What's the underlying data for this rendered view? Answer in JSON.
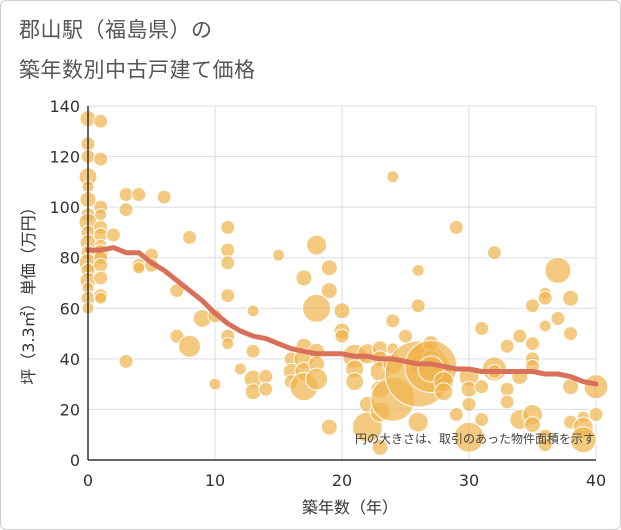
{
  "chart_data": {
    "type": "scatter",
    "title": "郡山駅（福島県）の築年数別中古戸建て価格",
    "title_lines": [
      "郡山駅（福島県）の",
      "築年数別中古戸建て価格"
    ],
    "xlabel": "築年数（年）",
    "ylabel": "坪（3.3㎡）単価（万円）",
    "xlim": [
      0,
      40
    ],
    "ylim": [
      0,
      140
    ],
    "x_ticks": [
      0,
      10,
      20,
      30,
      40
    ],
    "y_ticks": [
      0,
      20,
      40,
      60,
      80,
      100,
      120,
      140
    ],
    "grid": true,
    "note": "円の大きさは、取引のあった物件面積を示す",
    "colors": {
      "bubble": "#f0b44c",
      "trend": "#d9705a",
      "grid": "#d9dee5",
      "axis": "#333333"
    },
    "points": [
      [
        0,
        135,
        8
      ],
      [
        0,
        125,
        7
      ],
      [
        0,
        120,
        7
      ],
      [
        0,
        112,
        9
      ],
      [
        0,
        108,
        6
      ],
      [
        0,
        103,
        8
      ],
      [
        0,
        97,
        7
      ],
      [
        0,
        94,
        9
      ],
      [
        0,
        90,
        7
      ],
      [
        0,
        86,
        8
      ],
      [
        0,
        82,
        7
      ],
      [
        0,
        78,
        9
      ],
      [
        0,
        75,
        7
      ],
      [
        0,
        71,
        8
      ],
      [
        0,
        68,
        6
      ],
      [
        0,
        64,
        7
      ],
      [
        0,
        60,
        6
      ],
      [
        1,
        134,
        7
      ],
      [
        1,
        119,
        7
      ],
      [
        1,
        100,
        7
      ],
      [
        1,
        97,
        6
      ],
      [
        1,
        92,
        7
      ],
      [
        1,
        89,
        7
      ],
      [
        1,
        85,
        6
      ],
      [
        1,
        82,
        8
      ],
      [
        1,
        80,
        7
      ],
      [
        1,
        77,
        7
      ],
      [
        1,
        72,
        7
      ],
      [
        1,
        65,
        7
      ],
      [
        1,
        64,
        6
      ],
      [
        2,
        89,
        7
      ],
      [
        3,
        105,
        7
      ],
      [
        3,
        99,
        7
      ],
      [
        3,
        39,
        7
      ],
      [
        4,
        105,
        7
      ],
      [
        4,
        77,
        7
      ],
      [
        4,
        76,
        6
      ],
      [
        5,
        81,
        7
      ],
      [
        5,
        77,
        7
      ],
      [
        6,
        104,
        7
      ],
      [
        7,
        67,
        7
      ],
      [
        7,
        49,
        7
      ],
      [
        8,
        88,
        7
      ],
      [
        8,
        45,
        11
      ],
      [
        9,
        56,
        9
      ],
      [
        10,
        57,
        7
      ],
      [
        10,
        30,
        6
      ],
      [
        11,
        92,
        7
      ],
      [
        11,
        83,
        7
      ],
      [
        11,
        78,
        7
      ],
      [
        11,
        65,
        7
      ],
      [
        11,
        49,
        7
      ],
      [
        11,
        46,
        6
      ],
      [
        12,
        36,
        6
      ],
      [
        13,
        59,
        6
      ],
      [
        13,
        43,
        7
      ],
      [
        13,
        32,
        9
      ],
      [
        13,
        27,
        8
      ],
      [
        14,
        33,
        7
      ],
      [
        14,
        28,
        7
      ],
      [
        15,
        81,
        6
      ],
      [
        16,
        40,
        7
      ],
      [
        16,
        35,
        8
      ],
      [
        16,
        31,
        7
      ],
      [
        17,
        72,
        8
      ],
      [
        17,
        45,
        8
      ],
      [
        17,
        40,
        10
      ],
      [
        17,
        35,
        9
      ],
      [
        17,
        29,
        14
      ],
      [
        18,
        85,
        10
      ],
      [
        18,
        60,
        14
      ],
      [
        18,
        43,
        8
      ],
      [
        18,
        38,
        8
      ],
      [
        18,
        32,
        11
      ],
      [
        19,
        76,
        8
      ],
      [
        19,
        67,
        8
      ],
      [
        19,
        13,
        8
      ],
      [
        20,
        59,
        8
      ],
      [
        20,
        51,
        8
      ],
      [
        20,
        49,
        7
      ],
      [
        21,
        41,
        12
      ],
      [
        21,
        36,
        9
      ],
      [
        21,
        31,
        9
      ],
      [
        22,
        42,
        10
      ],
      [
        22,
        22,
        8
      ],
      [
        22,
        13,
        15
      ],
      [
        23,
        44,
        8
      ],
      [
        23,
        40,
        8
      ],
      [
        23,
        35,
        10
      ],
      [
        23,
        28,
        9
      ],
      [
        23,
        19,
        10
      ],
      [
        23,
        5,
        8
      ],
      [
        24,
        112,
        6
      ],
      [
        24,
        55,
        7
      ],
      [
        24,
        44,
        6
      ],
      [
        24,
        38,
        10
      ],
      [
        24,
        24,
        22
      ],
      [
        25,
        49,
        7
      ],
      [
        26,
        75,
        6
      ],
      [
        26,
        61,
        7
      ],
      [
        26,
        42,
        9
      ],
      [
        26,
        38,
        9
      ],
      [
        26,
        34,
        33
      ],
      [
        26,
        15,
        10
      ],
      [
        27,
        46,
        8
      ],
      [
        27,
        40,
        9
      ],
      [
        27,
        37,
        26
      ],
      [
        27,
        36,
        13
      ],
      [
        28,
        31,
        10
      ],
      [
        28,
        27,
        9
      ],
      [
        29,
        92,
        7
      ],
      [
        29,
        18,
        7
      ],
      [
        30,
        33,
        10
      ],
      [
        30,
        28,
        8
      ],
      [
        30,
        22,
        7
      ],
      [
        30,
        9,
        15
      ],
      [
        31,
        52,
        7
      ],
      [
        31,
        29,
        7
      ],
      [
        31,
        16,
        7
      ],
      [
        32,
        82,
        7
      ],
      [
        32,
        36,
        12
      ],
      [
        32,
        35,
        7
      ],
      [
        33,
        45,
        7
      ],
      [
        33,
        28,
        7
      ],
      [
        33,
        23,
        7
      ],
      [
        34,
        49,
        7
      ],
      [
        34,
        33,
        8
      ],
      [
        34,
        16,
        10
      ],
      [
        35,
        61,
        7
      ],
      [
        35,
        46,
        7
      ],
      [
        35,
        40,
        7
      ],
      [
        35,
        37,
        7
      ],
      [
        35,
        18,
        10
      ],
      [
        35,
        14,
        8
      ],
      [
        36,
        66,
        6
      ],
      [
        36,
        64,
        7
      ],
      [
        36,
        53,
        6
      ],
      [
        36,
        9,
        8
      ],
      [
        36,
        6,
        7
      ],
      [
        37,
        75,
        13
      ],
      [
        37,
        56,
        7
      ],
      [
        38,
        64,
        8
      ],
      [
        38,
        50,
        7
      ],
      [
        38,
        29,
        8
      ],
      [
        38,
        15,
        7
      ],
      [
        39,
        17,
        6
      ],
      [
        39,
        13,
        10
      ],
      [
        39,
        8,
        13
      ],
      [
        40,
        29,
        12
      ],
      [
        40,
        18,
        7
      ]
    ],
    "trend": [
      [
        0,
        83
      ],
      [
        1,
        83
      ],
      [
        2,
        84
      ],
      [
        3,
        82
      ],
      [
        4,
        82
      ],
      [
        5,
        78
      ],
      [
        6,
        75
      ],
      [
        7,
        71
      ],
      [
        8,
        67
      ],
      [
        9,
        63
      ],
      [
        10,
        58
      ],
      [
        11,
        54
      ],
      [
        12,
        51
      ],
      [
        13,
        49
      ],
      [
        14,
        48
      ],
      [
        15,
        46
      ],
      [
        16,
        44
      ],
      [
        17,
        43
      ],
      [
        18,
        42
      ],
      [
        19,
        42
      ],
      [
        20,
        42
      ],
      [
        21,
        41
      ],
      [
        22,
        41
      ],
      [
        23,
        40
      ],
      [
        24,
        40
      ],
      [
        25,
        39
      ],
      [
        26,
        38
      ],
      [
        27,
        38
      ],
      [
        28,
        37
      ],
      [
        29,
        36
      ],
      [
        30,
        36
      ],
      [
        31,
        35
      ],
      [
        32,
        35
      ],
      [
        33,
        35
      ],
      [
        34,
        35
      ],
      [
        35,
        35
      ],
      [
        36,
        34
      ],
      [
        37,
        34
      ],
      [
        38,
        33
      ],
      [
        39,
        31
      ],
      [
        40,
        30
      ]
    ]
  }
}
